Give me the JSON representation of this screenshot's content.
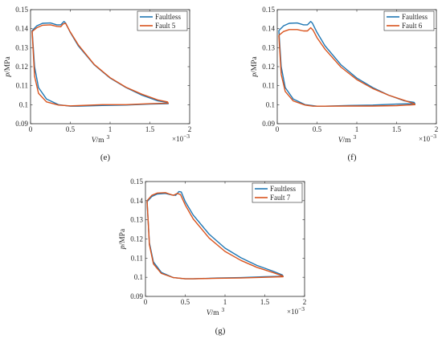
{
  "chart_data": [
    {
      "type": "line",
      "panel_label": "(e)",
      "xlabel_var": "V",
      "xlabel_unit": "/m",
      "xlabel_sup": "3",
      "ylabel_var": "p",
      "ylabel_unit": "/MPa",
      "x_multiplier_base": "×10",
      "x_multiplier_exp": "−3",
      "xlim": [
        0,
        2
      ],
      "ylim": [
        0.09,
        0.15
      ],
      "x_ticks": [
        0,
        0.5,
        1,
        1.5,
        2
      ],
      "x_tick_labels": [
        "0",
        "0.5",
        "1",
        "1.5",
        "2"
      ],
      "y_ticks": [
        0.09,
        0.1,
        0.11,
        0.12,
        0.13,
        0.14,
        0.15
      ],
      "y_tick_labels": [
        "0.09",
        "0.1",
        "0.11",
        "0.12",
        "0.13",
        "0.14",
        "0.15"
      ],
      "legend_position": "top-right",
      "series": [
        {
          "name": "Faultless",
          "color": "#1f77b4",
          "x": [
            0.02,
            0.08,
            0.15,
            0.25,
            0.33,
            0.38,
            0.42,
            0.44,
            0.5,
            0.6,
            0.8,
            1.0,
            1.2,
            1.4,
            1.6,
            1.72,
            1.73,
            1.5,
            1.2,
            0.9,
            0.6,
            0.5,
            0.35,
            0.2,
            0.1,
            0.05,
            0.02
          ],
          "y": [
            0.139,
            0.1415,
            0.1428,
            0.143,
            0.142,
            0.142,
            0.1438,
            0.143,
            0.138,
            0.131,
            0.121,
            0.114,
            0.109,
            0.105,
            0.102,
            0.1012,
            0.1005,
            0.1003,
            0.0998,
            0.0996,
            0.0992,
            0.0992,
            0.1,
            0.103,
            0.109,
            0.12,
            0.139
          ]
        },
        {
          "name": "Fault 5",
          "color": "#d9541e",
          "x": [
            0.02,
            0.08,
            0.15,
            0.25,
            0.33,
            0.38,
            0.41,
            0.44,
            0.5,
            0.6,
            0.8,
            1.0,
            1.2,
            1.4,
            1.6,
            1.72,
            1.73,
            1.5,
            1.2,
            0.9,
            0.6,
            0.5,
            0.35,
            0.2,
            0.1,
            0.05,
            0.02
          ],
          "y": [
            0.1385,
            0.1405,
            0.1418,
            0.142,
            0.1412,
            0.141,
            0.1425,
            0.1428,
            0.1382,
            0.1315,
            0.1212,
            0.1142,
            0.1092,
            0.1055,
            0.1025,
            0.1015,
            0.1008,
            0.1005,
            0.1,
            0.1,
            0.0995,
            0.0994,
            0.0998,
            0.1015,
            0.106,
            0.115,
            0.1385
          ]
        }
      ]
    },
    {
      "type": "line",
      "panel_label": "(f)",
      "xlabel_var": "V",
      "xlabel_unit": "/m",
      "xlabel_sup": "3",
      "ylabel_var": "p",
      "ylabel_unit": "/MPa",
      "x_multiplier_base": "×10",
      "x_multiplier_exp": "−3",
      "xlim": [
        0,
        2
      ],
      "ylim": [
        0.09,
        0.15
      ],
      "x_ticks": [
        0,
        0.5,
        1,
        1.5,
        2
      ],
      "x_tick_labels": [
        "0",
        "0.5",
        "1",
        "1.5",
        "2"
      ],
      "y_ticks": [
        0.09,
        0.1,
        0.11,
        0.12,
        0.13,
        0.14,
        0.15
      ],
      "y_tick_labels": [
        "0.09",
        "0.1",
        "0.11",
        "0.12",
        "0.13",
        "0.14",
        "0.15"
      ],
      "legend_position": "top-right",
      "series": [
        {
          "name": "Faultless",
          "color": "#1f77b4",
          "x": [
            0.02,
            0.08,
            0.15,
            0.25,
            0.33,
            0.38,
            0.42,
            0.44,
            0.5,
            0.6,
            0.8,
            1.0,
            1.2,
            1.4,
            1.6,
            1.72,
            1.73,
            1.5,
            1.2,
            0.9,
            0.6,
            0.5,
            0.35,
            0.2,
            0.1,
            0.05,
            0.02
          ],
          "y": [
            0.139,
            0.1415,
            0.1428,
            0.143,
            0.142,
            0.142,
            0.1438,
            0.143,
            0.138,
            0.131,
            0.121,
            0.114,
            0.109,
            0.105,
            0.102,
            0.1012,
            0.1005,
            0.1003,
            0.0998,
            0.0996,
            0.0992,
            0.0992,
            0.1,
            0.103,
            0.109,
            0.12,
            0.139
          ]
        },
        {
          "name": "Fault 6",
          "color": "#d9541e",
          "x": [
            0.02,
            0.08,
            0.15,
            0.25,
            0.33,
            0.38,
            0.42,
            0.45,
            0.5,
            0.6,
            0.8,
            1.0,
            1.2,
            1.4,
            1.6,
            1.72,
            1.73,
            1.5,
            1.2,
            0.9,
            0.6,
            0.45,
            0.35,
            0.2,
            0.1,
            0.05,
            0.02
          ],
          "y": [
            0.1365,
            0.1385,
            0.1395,
            0.1395,
            0.1388,
            0.1388,
            0.1405,
            0.1392,
            0.1352,
            0.1292,
            0.1198,
            0.1132,
            0.1085,
            0.105,
            0.1022,
            0.1005,
            0.1,
            0.0995,
            0.0993,
            0.0993,
            0.0992,
            0.0992,
            0.0998,
            0.102,
            0.107,
            0.116,
            0.1365
          ]
        }
      ]
    },
    {
      "type": "line",
      "panel_label": "(g)",
      "xlabel_var": "V",
      "xlabel_unit": "/m",
      "xlabel_sup": "3",
      "ylabel_var": "p",
      "ylabel_unit": "/MPa",
      "x_multiplier_base": "×10",
      "x_multiplier_exp": "−3",
      "xlim": [
        0,
        2
      ],
      "ylim": [
        0.09,
        0.15
      ],
      "x_ticks": [
        0,
        0.5,
        1,
        1.5,
        2
      ],
      "x_tick_labels": [
        "0",
        "0.5",
        "1",
        "1.5",
        "2"
      ],
      "y_ticks": [
        0.09,
        0.1,
        0.11,
        0.12,
        0.13,
        0.14,
        0.15
      ],
      "y_tick_labels": [
        "0.09",
        "0.1",
        "0.11",
        "0.12",
        "0.13",
        "0.14",
        "0.15"
      ],
      "legend_position": "top-right",
      "series": [
        {
          "name": "Faultless",
          "color": "#1f77b4",
          "x": [
            0.02,
            0.08,
            0.15,
            0.25,
            0.33,
            0.38,
            0.42,
            0.45,
            0.5,
            0.6,
            0.8,
            1.0,
            1.2,
            1.4,
            1.6,
            1.72,
            1.73,
            1.5,
            1.2,
            0.9,
            0.6,
            0.5,
            0.35,
            0.2,
            0.1,
            0.05,
            0.02
          ],
          "y": [
            0.1395,
            0.1422,
            0.1435,
            0.1438,
            0.143,
            0.1428,
            0.1448,
            0.1445,
            0.1395,
            0.1325,
            0.1225,
            0.1152,
            0.1102,
            0.1062,
            0.1032,
            0.1012,
            0.1005,
            0.1003,
            0.0998,
            0.0996,
            0.0992,
            0.0992,
            0.0998,
            0.1025,
            0.108,
            0.118,
            0.1395
          ]
        },
        {
          "name": "Fault 7",
          "color": "#d9541e",
          "x": [
            0.02,
            0.08,
            0.15,
            0.25,
            0.3,
            0.35,
            0.4,
            0.44,
            0.5,
            0.6,
            0.8,
            1.0,
            1.2,
            1.4,
            1.6,
            1.72,
            1.73,
            1.5,
            1.2,
            0.9,
            0.6,
            0.5,
            0.35,
            0.2,
            0.1,
            0.05,
            0.02
          ],
          "y": [
            0.14,
            0.1428,
            0.144,
            0.1442,
            0.1435,
            0.1428,
            0.1438,
            0.1432,
            0.1378,
            0.1305,
            0.1205,
            0.1135,
            0.1088,
            0.1052,
            0.1025,
            0.1008,
            0.1003,
            0.1,
            0.0996,
            0.0995,
            0.0992,
            0.0992,
            0.0998,
            0.102,
            0.107,
            0.117,
            0.14
          ]
        }
      ]
    }
  ]
}
